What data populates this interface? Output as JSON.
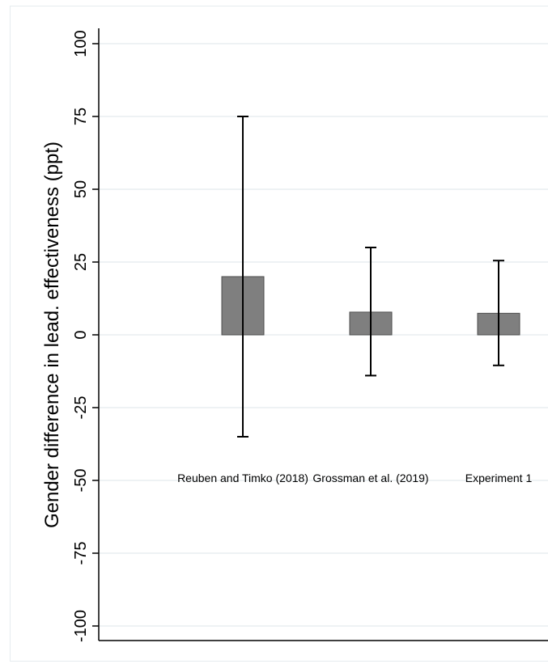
{
  "chart_data": {
    "type": "bar",
    "title": "",
    "xlabel": "",
    "ylabel": "Gender difference in lead. effectiveness (ppt)",
    "ylim": [
      -100,
      100
    ],
    "yticks": [
      100,
      75,
      50,
      25,
      0,
      -25,
      -50,
      -75,
      -100
    ],
    "ytick_labels": [
      "100",
      "75",
      "50",
      "25",
      "0",
      "-25",
      "-50",
      "-75",
      "-100"
    ],
    "grid": true,
    "categories": [
      "Reuben and Timko (2018)",
      "Grossman et al. (2019)",
      "Experiment 1"
    ],
    "values": [
      20,
      7.8,
      7.4
    ],
    "ci_low": [
      -35,
      -14,
      -10.5
    ],
    "ci_high": [
      75,
      30,
      25.5
    ],
    "colors": {
      "bar": "#7f7f7f",
      "bar_edge": "#4d4d4d",
      "grid": "#e9eef1",
      "axis": "#000000",
      "error_bar": "#000000",
      "background": "#ffffff"
    }
  }
}
